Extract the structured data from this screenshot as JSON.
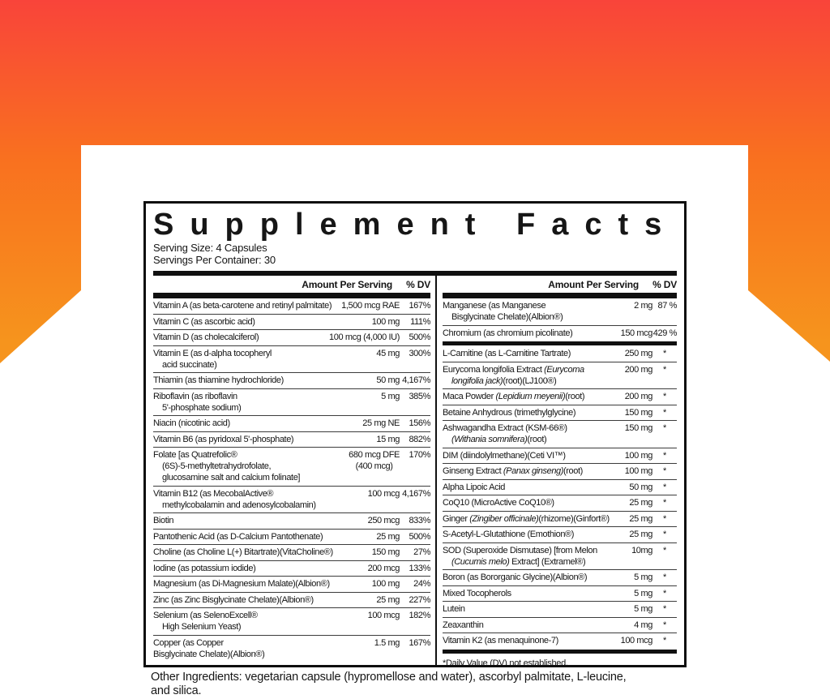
{
  "label": {
    "title": "Supplement Facts",
    "serving_size": "Serving Size: 4 Capsules",
    "servings_per_container": "Servings Per Container: 30",
    "column_header": {
      "amount": "Amount Per Serving",
      "dv": "% DV"
    },
    "footnote": "*Daily Value (DV) not established.",
    "other_ingredients": "Other Ingredients: vegetarian capsule (hypromellose and water), ascorbyl palmitate, L-leucine,\nand silica."
  },
  "colors": {
    "gradient_top": "#f9443a",
    "gradient_mid": "#f9711f",
    "gradient_bottom": "#f6941d",
    "panel_background": "#ffffff",
    "ink": "#141414"
  },
  "left_column_rows": [
    {
      "name": "Vitamin A (as beta-carotene and retinyl palmitate)",
      "amount": "1,500 mcg RAE",
      "dv": "167%"
    },
    {
      "name": "Vitamin C (as ascorbic acid)",
      "amount": "100 mg",
      "dv": "111%"
    },
    {
      "name": "Vitamin D (as cholecalciferol)",
      "amount": "100 mcg (4,000 IU)",
      "dv": "500%"
    },
    {
      "name": "Vitamin E (as d-alpha tocopheryl\nacid succinate)",
      "amount": "45 mg",
      "dv": "300%"
    },
    {
      "name": "Thiamin (as thiamine hydrochloride)",
      "amount": "50 mg",
      "dv": "4,167%"
    },
    {
      "name": "Riboflavin (as riboflavin\n5'-phosphate sodium)",
      "amount": "5 mg",
      "dv": "385%"
    },
    {
      "name": "Niacin (nicotinic acid)",
      "amount": "25 mg NE",
      "dv": "156%"
    },
    {
      "name": "Vitamin B6 (as pyridoxal 5'-phosphate)",
      "amount": "15 mg",
      "dv": "882%"
    },
    {
      "name": "Folate [as Quatrefolic®\n(6S)-5-methyltetrahydrofolate,\nglucosamine salt and calcium folinate]",
      "amount": "680 mcg DFE\n(400 mcg)",
      "dv": "170%"
    },
    {
      "name": "Vitamin B12 (as MecobalActive®\nmethylcobalamin and adenosylcobalamin)",
      "amount": "100 mcg",
      "dv": "4,167%"
    },
    {
      "name": "Biotin",
      "amount": "250 mcg",
      "dv": "833%"
    },
    {
      "name": "Pantothenic Acid (as D-Calcium Pantothenate)",
      "amount": "25 mg",
      "dv": "500%"
    },
    {
      "name": "Choline (as Choline L(+) Bitartrate)(VitaCholine®)",
      "amount": "150 mg",
      "dv": "27%"
    },
    {
      "name": "Iodine (as potassium iodide)",
      "amount": "200 mcg",
      "dv": "133%"
    },
    {
      "name": "Magnesium (as Di-Magnesium Malate)(Albion®)",
      "amount": "100 mg",
      "dv": "24%"
    },
    {
      "name": "Zinc (as Zinc Bisglycinate Chelate)(Albion®)",
      "amount": "25 mg",
      "dv": "227%"
    },
    {
      "name": "Selenium (as SelenoExcell®\nHigh Selenium Yeast)",
      "amount": "100 mcg",
      "dv": "182%"
    },
    {
      "name": "Copper (as Copper\nBisglycinate Chelate)(Albion®)",
      "amount": "1.5 mg",
      "dv": "167%",
      "indent": false
    }
  ],
  "right_column_rows": [
    {
      "name": "Manganese (as Manganese\nBisglycinate Chelate)(Albion®)",
      "amount": "2 mg",
      "dv": "87 %"
    },
    {
      "name": "Chromium (as chromium picolinate)",
      "amount": "150 mcg",
      "dv": "429 %"
    },
    {
      "divider": true
    },
    {
      "name": "L-Carnitine (as L-Carnitine Tartrate)",
      "amount": "250 mg",
      "dv": "*"
    },
    {
      "name": [
        "Eurycoma longifolia Extract ",
        {
          "i": "(Eurycoma\nlongifolia jack)"
        },
        "(root)(LJ100®)"
      ],
      "amount": "200 mg",
      "dv": "*"
    },
    {
      "name": [
        "Maca Powder ",
        {
          "i": "(Lepidium meyenii)"
        },
        "(root)"
      ],
      "amount": "200 mg",
      "dv": "*"
    },
    {
      "name": "Betaine Anhydrous (trimethylglycine)",
      "amount": "150 mg",
      "dv": "*"
    },
    {
      "name": [
        "Ashwagandha Extract (KSM-66®)\n",
        {
          "i": "(Withania somnifera)"
        },
        "(root)"
      ],
      "amount": "150 mg",
      "dv": "*"
    },
    {
      "name": "DIM (diindolylmethane)(Ceti VI™)",
      "amount": "100 mg",
      "dv": "*"
    },
    {
      "name": [
        "Ginseng Extract ",
        {
          "i": "(Panax ginseng)"
        },
        "(root)"
      ],
      "amount": "100 mg",
      "dv": "*"
    },
    {
      "name": "Alpha Lipoic Acid",
      "amount": "50 mg",
      "dv": "*"
    },
    {
      "name": "CoQ10 (MicroActive CoQ10®)",
      "amount": "25 mg",
      "dv": "*"
    },
    {
      "name": [
        "Ginger ",
        {
          "i": "(Zingiber officinale)"
        },
        "(rhizome)(Ginfort®)"
      ],
      "amount": "25 mg",
      "dv": "*"
    },
    {
      "name": "S-Acetyl-L-Glutathione (Emothion®)",
      "amount": "25 mg",
      "dv": "*"
    },
    {
      "name": [
        "SOD (Superoxide Dismutase) [from Melon\n",
        {
          "i": "(Cucumis melo)"
        },
        " Extract] (Extramel®)"
      ],
      "amount": "10mg",
      "dv": "*"
    },
    {
      "name": "Boron (as Bororganic Glycine)(Albion®)",
      "amount": "5 mg",
      "dv": "*"
    },
    {
      "name": "Mixed Tocopherols",
      "amount": "5 mg",
      "dv": "*"
    },
    {
      "name": "Lutein",
      "amount": "5 mg",
      "dv": "*"
    },
    {
      "name": "Zeaxanthin",
      "amount": "4 mg",
      "dv": "*"
    },
    {
      "name": "Vitamin K2 (as menaquinone-7)",
      "amount": "100 mcg",
      "dv": "*"
    },
    {
      "divider": true
    }
  ]
}
